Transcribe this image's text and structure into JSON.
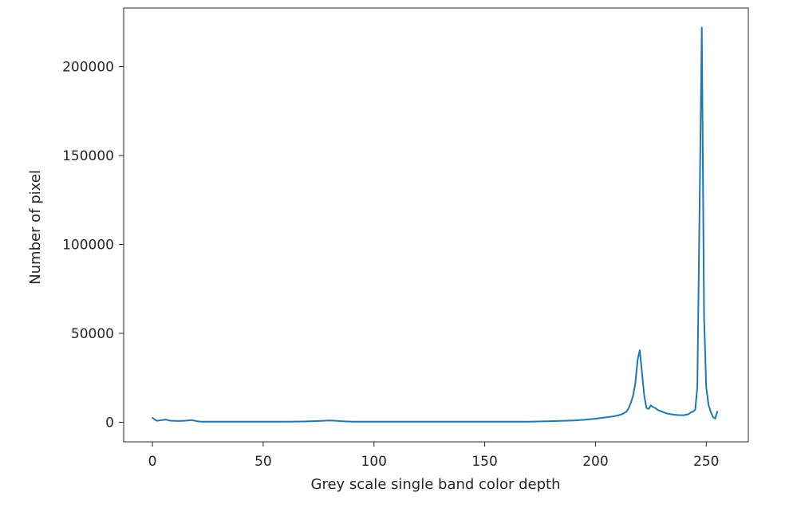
{
  "chart_data": {
    "type": "line",
    "title": "",
    "xlabel": "Grey scale single band color depth",
    "ylabel": "Number of pixel",
    "xlim": [
      -13,
      269
    ],
    "ylim": [
      -11000,
      233000
    ],
    "xticks": [
      0,
      50,
      100,
      150,
      200,
      250
    ],
    "yticks": [
      0,
      50000,
      100000,
      150000,
      200000
    ],
    "xtick_labels": [
      "0",
      "50",
      "100",
      "150",
      "200",
      "250"
    ],
    "ytick_labels": [
      "0",
      "50000",
      "100000",
      "150000",
      "200000"
    ],
    "grid": false,
    "legend": "none",
    "colors": {
      "line": "#1f77b4",
      "axes": "#262626",
      "background": "#ffffff"
    },
    "series": [
      {
        "x": [
          0,
          1,
          2,
          3,
          4,
          5,
          6,
          7,
          8,
          10,
          12,
          15,
          18,
          20,
          22,
          25,
          30,
          40,
          50,
          60,
          70,
          75,
          80,
          82,
          85,
          90,
          100,
          110,
          120,
          130,
          140,
          150,
          160,
          170,
          180,
          190,
          195,
          200,
          205,
          208,
          210,
          212,
          214,
          215,
          216,
          217,
          218,
          219,
          220,
          221,
          222,
          223,
          224,
          225,
          226,
          227,
          228,
          230,
          232,
          234,
          236,
          238,
          240,
          242,
          243,
          244,
          245,
          246,
          247,
          248,
          249,
          250,
          251,
          252,
          253,
          254,
          255
        ],
        "y": [
          2500,
          1500,
          800,
          1000,
          1200,
          1300,
          1500,
          1200,
          900,
          800,
          700,
          900,
          1200,
          600,
          300,
          300,
          300,
          300,
          300,
          300,
          500,
          700,
          1000,
          900,
          600,
          300,
          300,
          300,
          300,
          300,
          300,
          300,
          300,
          300,
          600,
          1000,
          1400,
          2000,
          2800,
          3300,
          3800,
          4500,
          6000,
          8000,
          11000,
          15000,
          22000,
          35000,
          40500,
          28000,
          15000,
          8000,
          7500,
          9500,
          8500,
          8000,
          7000,
          6000,
          5000,
          4500,
          4200,
          4000,
          4000,
          4500,
          5500,
          6000,
          7000,
          20000,
          120000,
          222000,
          60000,
          20000,
          10000,
          6000,
          3000,
          2000,
          6000
        ]
      }
    ]
  }
}
